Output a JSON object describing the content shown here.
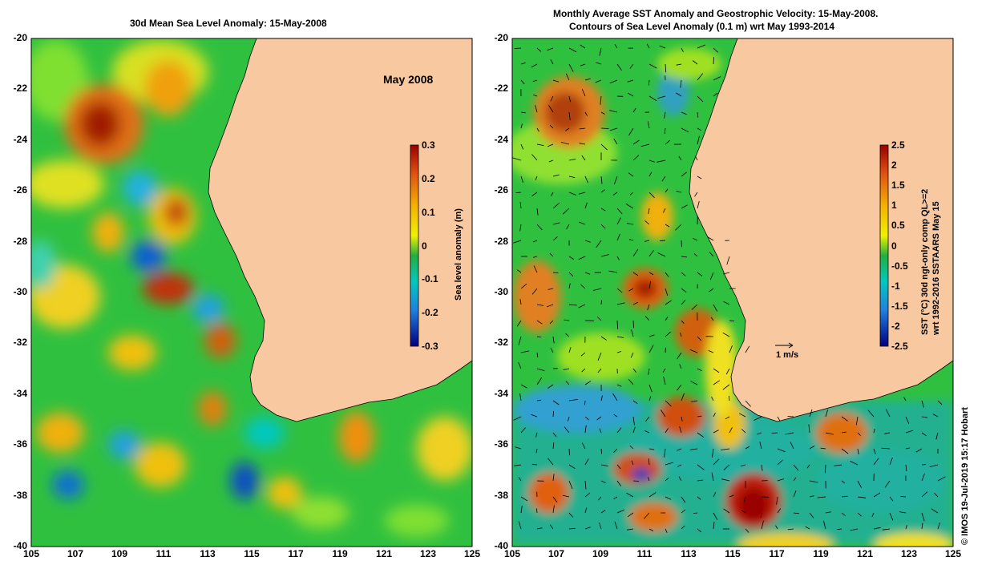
{
  "left_panel": {
    "title": "30d Mean Sea Level Anomaly: 15-May-2008",
    "month_label": "May 2008",
    "colorbar": {
      "label": "Sea level anomaly (m)",
      "ticks": [
        "0.3",
        "0.2",
        "0.1",
        "0",
        "-0.1",
        "-0.2",
        "-0.3"
      ],
      "colors": [
        "#990000",
        "#e05010",
        "#f5b000",
        "#f0f000",
        "#20b040",
        "#00c8c0",
        "#2080e0",
        "#000080"
      ]
    }
  },
  "right_panel": {
    "title_line1": "Monthly Average SST Anomaly  and Geostrophic Velocity: 15-May-2008.",
    "title_line2": "Contours of Sea Level Anomaly (0.1 m) wrt May 1993-2014",
    "vector_scale_label": "1 m/s",
    "colorbar": {
      "label_line1": "SST (°C) 30d ngt-only comp QL>=2",
      "label_line2": "wrt 1992-2016 SSTAARS May 15",
      "ticks": [
        "2.5",
        "2",
        "1.5",
        "1",
        "0.5",
        "0",
        "-0.5",
        "-1",
        "-1.5",
        "-2",
        "-2.5"
      ],
      "colors": [
        "#990000",
        "#e05010",
        "#f5b000",
        "#f0f000",
        "#20b040",
        "#00c8c0",
        "#2080e0",
        "#000080"
      ]
    }
  },
  "axes": {
    "x_ticks": [
      "105",
      "107",
      "109",
      "111",
      "113",
      "115",
      "117",
      "119",
      "121",
      "123",
      "125"
    ],
    "y_ticks": [
      "-20",
      "-22",
      "-24",
      "-26",
      "-28",
      "-30",
      "-32",
      "-34",
      "-36",
      "-38",
      "-40"
    ]
  },
  "colors": {
    "land": "#f8c8a0",
    "ocean_base": "#20c040",
    "ocean_light": "#70dd30"
  },
  "credit": "© IMOS 19-Jul-2019 15:17 Hobart"
}
